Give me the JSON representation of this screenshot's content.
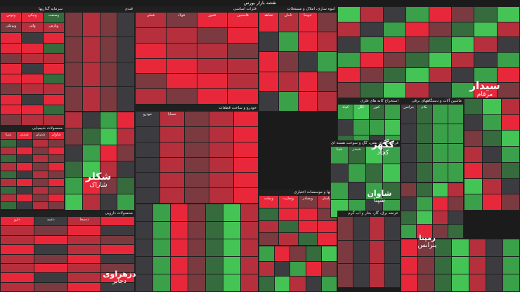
{
  "title": "نقشه بازار بورس",
  "colors": {
    "r3": "#e8283a",
    "r2": "#b5303c",
    "r1": "#7a3a40",
    "n": "#3c3c40",
    "g1": "#356b3d",
    "g2": "#3aa049",
    "g3": "#45c456"
  },
  "sectors": [
    {
      "title": "سرمایه گذاریها",
      "cols": 3,
      "rows": 11,
      "pattern": [
        "r3",
        "r2",
        "r3",
        "r1",
        "n",
        "g1",
        "r3",
        "r3",
        "r2"
      ],
      "labels": [
        "وتوس",
        "ونیکی",
        "وصنعت",
        "وبوعلی",
        "واتی",
        "وپارس"
      ]
    },
    {
      "title": "قندی",
      "cols": 4,
      "rows": 4,
      "pattern": [
        "n",
        "r1",
        "r2",
        "r1"
      ],
      "labels": []
    },
    {
      "title": "فلزات اساسی",
      "cols": 4,
      "rows": 6,
      "pattern": [
        "r3",
        "r2",
        "r3",
        "r1",
        "r2"
      ],
      "labels": [
        "فملی",
        "فولاد",
        "فخوز",
        "فاسمین"
      ]
    },
    {
      "title": "محصولات شیمیایی",
      "cols": 4,
      "rows": 10,
      "pattern": [
        "r3",
        "r2",
        "r1",
        "r2",
        "n",
        "g1",
        "r3",
        "r1"
      ],
      "labels": [
        "شپنا",
        "شبندر",
        "شتران",
        "شاوان"
      ]
    },
    {
      "title": "انبوه سازی، املاک و مستغلات",
      "cols": 4,
      "rows": 5,
      "pattern": [
        "r3",
        "r2",
        "r3",
        "r1",
        "n",
        "g2"
      ],
      "labels": [
        "ثشاهد",
        "ثامان",
        "ثنوسا"
      ]
    },
    {
      "title": "بانکها و موسسات اعتباری",
      "cols": 4,
      "rows": 4,
      "pattern": [
        "r3",
        "r2",
        "r3",
        "g1",
        "r1"
      ],
      "labels": [
        "وبملت",
        "وتجارت",
        "وبصادر",
        "وپاسار"
      ]
    },
    {
      "title": "استخراج کانه های فلزی",
      "cols": 4,
      "rows": 6,
      "pattern": [
        "g2",
        "g3",
        "g1",
        "g2",
        "n",
        "g2"
      ],
      "labels": [
        "کچاد",
        "کگل",
        "کنور"
      ]
    },
    {
      "title": "فراورده های نفتی، کک و سوخت هسته ای",
      "cols": 4,
      "rows": 4,
      "pattern": [
        "g3",
        "g2",
        "g2",
        "g1",
        "n"
      ],
      "labels": [
        "شپنا",
        "شبندر"
      ]
    },
    {
      "title": "عرضه برق، گاز، بخار و آب گرم",
      "cols": 4,
      "rows": 3,
      "pattern": [
        "r1",
        "n",
        "r2",
        "n"
      ],
      "labels": []
    },
    {
      "title": "محصولات دارویی",
      "cols": 4,
      "rows": 8,
      "pattern": [
        "r3",
        "r2",
        "r1",
        "r3",
        "n",
        "r2"
      ],
      "labels": [
        "دارو",
        "دعبید",
        "دسبحا"
      ]
    },
    {
      "title": "ماشین آلات و دستگاههای برقی",
      "cols": 4,
      "rows": 4,
      "pattern": [
        "g2",
        "g1",
        "n",
        "g2"
      ],
      "labels": [
        "بترانس",
        "بکام"
      ]
    },
    {
      "title": "خودرو و ساخت قطعات",
      "cols": 5,
      "rows": 6,
      "pattern": [
        "r2",
        "r3",
        "r1",
        "n",
        "r2"
      ],
      "labels": [
        "خودرو",
        "خساپا"
      ]
    }
  ],
  "big_labels": [
    {
      "name": "شکلر",
      "sub": "شاراک"
    },
    {
      "name": "سیدار",
      "sub": "مرقام"
    },
    {
      "name": "کگهر",
      "sub": "کچاد"
    },
    {
      "name": "شاوان",
      "sub": "شپنا"
    },
    {
      "name": "رمپنا",
      "sub": "بترانس"
    },
    {
      "name": "دزهراوی",
      "sub": "دجابر"
    }
  ]
}
